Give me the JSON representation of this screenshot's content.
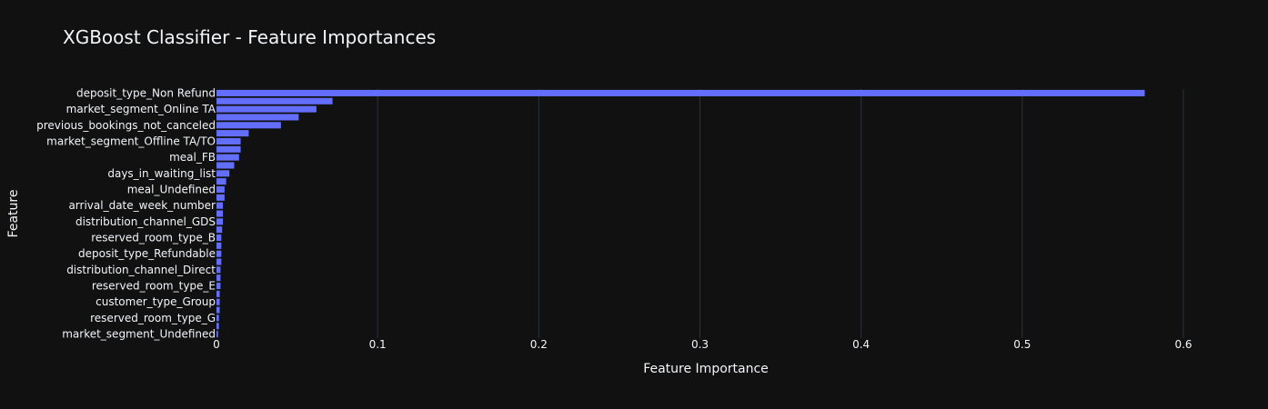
{
  "chart_data": {
    "type": "bar",
    "orientation": "horizontal",
    "title": "XGBoost Classifier - Feature Importances",
    "xlabel": "Feature Importance",
    "ylabel": "Feature",
    "xlim": [
      0,
      0.64
    ],
    "x_ticks": [
      "0",
      "0.1",
      "0.2",
      "0.3",
      "0.4",
      "0.5",
      "0.6"
    ],
    "x_tick_values": [
      0,
      0.1,
      0.2,
      0.3,
      0.4,
      0.5,
      0.6
    ],
    "grid": true,
    "bar_color": "#636efa",
    "background": "#111111",
    "grid_color": "#283442",
    "categories": [
      "deposit_type_Non Refund",
      "",
      "market_segment_Online TA",
      "",
      "previous_bookings_not_canceled",
      "",
      "market_segment_Offline TA/TO",
      "",
      "meal_FB",
      "",
      "days_in_waiting_list",
      "",
      "meal_Undefined",
      "",
      "arrival_date_week_number",
      "",
      "distribution_channel_GDS",
      "",
      "reserved_room_type_B",
      "",
      "deposit_type_Refundable",
      "",
      "distribution_channel_Direct",
      "",
      "reserved_room_type_E",
      "",
      "customer_type_Group",
      "",
      "reserved_room_type_G",
      "",
      "market_segment_Undefined"
    ],
    "values": [
      0.576,
      0.072,
      0.062,
      0.051,
      0.04,
      0.02,
      0.015,
      0.015,
      0.014,
      0.011,
      0.008,
      0.006,
      0.005,
      0.005,
      0.004,
      0.004,
      0.004,
      0.0035,
      0.003,
      0.003,
      0.003,
      0.003,
      0.0025,
      0.0025,
      0.0025,
      0.002,
      0.002,
      0.002,
      0.0015,
      0.0015,
      0.001
    ]
  }
}
